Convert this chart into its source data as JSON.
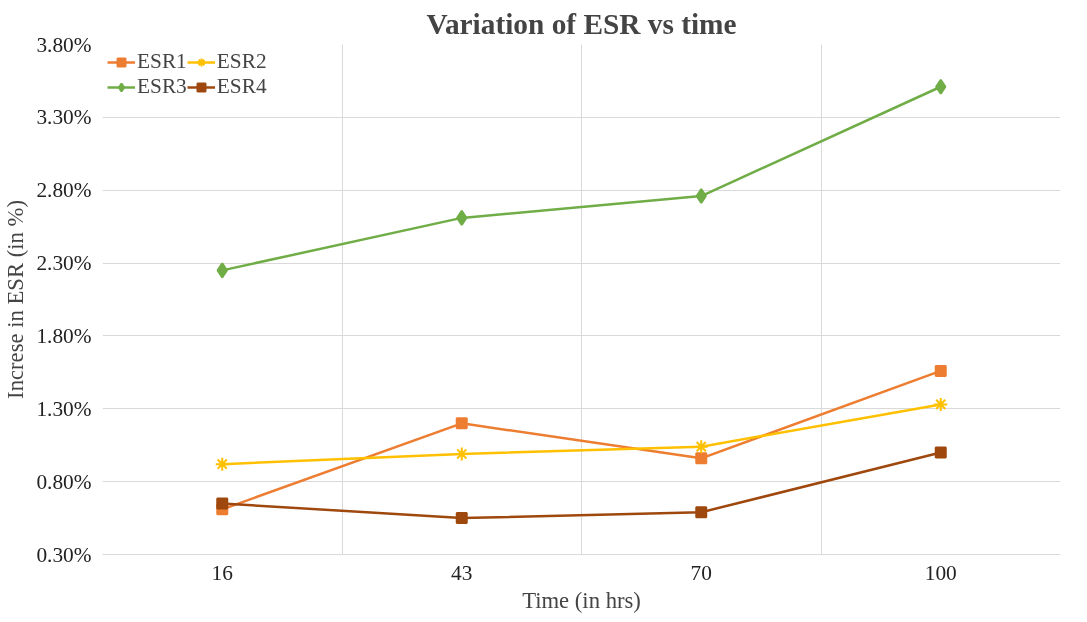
{
  "chart_data": {
    "type": "line",
    "title": "Variation of ESR vs time",
    "xlabel": "Time (in hrs)",
    "ylabel": "Increse in ESR (in %)",
    "categories": [
      "16",
      "43",
      "70",
      "100"
    ],
    "series": [
      {
        "name": "ESR1",
        "color": "#ed7d31",
        "marker": "square",
        "values": [
          0.61,
          1.2,
          0.96,
          1.56
        ]
      },
      {
        "name": "ESR2",
        "color": "#ffc000",
        "marker": "cross",
        "values": [
          0.92,
          0.99,
          1.04,
          1.33
        ]
      },
      {
        "name": "ESR3",
        "color": "#70ad47",
        "marker": "diamond",
        "values": [
          2.25,
          2.61,
          2.76,
          3.51
        ]
      },
      {
        "name": "ESR4",
        "color": "#9e480e",
        "marker": "square",
        "values": [
          0.65,
          0.55,
          0.59,
          1.0
        ]
      }
    ],
    "ylim": [
      0.3,
      3.8
    ],
    "yticks": [
      {
        "value": 0.3,
        "label": "0.30%"
      },
      {
        "value": 0.8,
        "label": "0.80%"
      },
      {
        "value": 1.3,
        "label": "1.30%"
      },
      {
        "value": 1.8,
        "label": "1.80%"
      },
      {
        "value": 2.3,
        "label": "2.30%"
      },
      {
        "value": 2.8,
        "label": "2.80%"
      },
      {
        "value": 3.3,
        "label": "3.30%"
      },
      {
        "value": 3.8,
        "label": "3.80%"
      }
    ],
    "grid": true,
    "legend": "top left",
    "line_style": "solid"
  }
}
